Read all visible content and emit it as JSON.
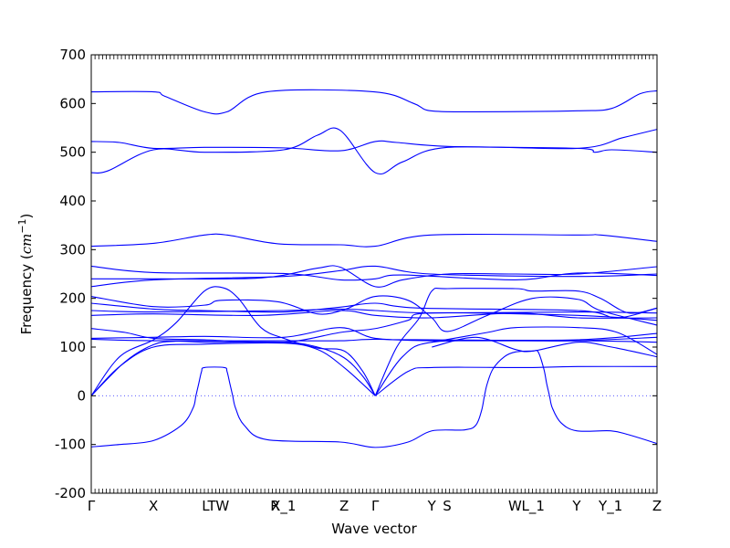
{
  "chart_data": {
    "type": "line",
    "title": "",
    "xlabel": "Wave vector",
    "ylabel": "Frequency ($cm^{-1}$)",
    "ylabel_parts": {
      "text": "Frequency (",
      "math": "cm",
      "sup": "−1",
      "close": ")"
    },
    "ylim": [
      -200,
      700
    ],
    "yticks": [
      -200,
      -100,
      0,
      100,
      200,
      300,
      400,
      500,
      600,
      700
    ],
    "xlim": [
      0,
      1
    ],
    "grid": false,
    "zero_line": {
      "y": 0,
      "style": "dotted"
    },
    "line_color": "#0000ff",
    "ref_line_color": "#4040ff",
    "high_symmetry_points": [
      {
        "label": "Γ",
        "x": 0.0
      },
      {
        "label": "X",
        "x": 0.11
      },
      {
        "label": "LT",
        "x": 0.208
      },
      {
        "label": "W",
        "x": 0.232
      },
      {
        "label": "R",
        "x": 0.325
      },
      {
        "label": "X_1",
        "x": 0.34
      },
      {
        "label": "Z",
        "x": 0.447
      },
      {
        "label": "Γ",
        "x": 0.502
      },
      {
        "label": "Y",
        "x": 0.602
      },
      {
        "label": "S",
        "x": 0.629
      },
      {
        "label": "W",
        "x": 0.749
      },
      {
        "label": "L_1",
        "x": 0.781
      },
      {
        "label": "Y",
        "x": 0.858
      },
      {
        "label": "Y_1",
        "x": 0.918
      },
      {
        "label": "Z",
        "x": 1.0
      }
    ],
    "series": [
      {
        "points": [
          [
            0,
            624
          ],
          [
            0.11,
            624
          ],
          [
            0.13,
            615
          ],
          [
            0.2,
            583
          ],
          [
            0.24,
            583
          ],
          [
            0.31,
            624
          ],
          [
            0.5,
            624
          ],
          [
            0.57,
            600
          ],
          [
            0.6,
            585
          ],
          [
            0.68,
            583
          ],
          [
            0.86,
            585
          ],
          [
            0.92,
            590
          ],
          [
            0.97,
            620
          ],
          [
            1.0,
            626
          ]
        ]
      },
      {
        "points": [
          [
            0,
            522
          ],
          [
            0.05,
            520
          ],
          [
            0.11,
            508
          ],
          [
            0.2,
            510
          ],
          [
            0.34,
            509
          ],
          [
            0.44,
            503
          ],
          [
            0.502,
            522
          ],
          [
            0.54,
            520
          ],
          [
            0.63,
            512
          ],
          [
            0.86,
            508
          ],
          [
            0.89,
            500
          ],
          [
            0.92,
            505
          ],
          [
            1.0,
            500
          ]
        ]
      },
      {
        "points": [
          [
            0,
            458
          ],
          [
            0.03,
            462
          ],
          [
            0.11,
            505
          ],
          [
            0.2,
            500
          ],
          [
            0.34,
            505
          ],
          [
            0.4,
            535
          ],
          [
            0.44,
            545
          ],
          [
            0.502,
            458
          ],
          [
            0.55,
            480
          ],
          [
            0.63,
            510
          ],
          [
            0.86,
            508
          ],
          [
            0.94,
            530
          ],
          [
            1.0,
            547
          ]
        ]
      },
      {
        "points": [
          [
            0,
            307
          ],
          [
            0.11,
            313
          ],
          [
            0.2,
            330
          ],
          [
            0.24,
            330
          ],
          [
            0.33,
            312
          ],
          [
            0.44,
            310
          ],
          [
            0.502,
            307
          ],
          [
            0.6,
            330
          ],
          [
            0.86,
            330
          ],
          [
            0.9,
            330
          ],
          [
            1.0,
            317
          ]
        ]
      },
      {
        "points": [
          [
            0,
            266
          ],
          [
            0.11,
            253
          ],
          [
            0.34,
            251
          ],
          [
            0.44,
            238
          ],
          [
            0.502,
            240
          ],
          [
            0.55,
            248
          ],
          [
            0.75,
            238
          ],
          [
            0.86,
            252
          ],
          [
            1.0,
            247
          ]
        ]
      },
      {
        "points": [
          [
            0,
            240
          ],
          [
            0.11,
            240
          ],
          [
            0.3,
            242
          ],
          [
            0.4,
            262
          ],
          [
            0.44,
            264
          ],
          [
            0.502,
            224
          ],
          [
            0.55,
            238
          ],
          [
            0.63,
            250
          ],
          [
            0.75,
            250
          ],
          [
            0.86,
            250
          ],
          [
            1.0,
            265
          ]
        ]
      },
      {
        "points": [
          [
            0,
            224
          ],
          [
            0.11,
            238
          ],
          [
            0.34,
            245
          ],
          [
            0.44,
            257
          ],
          [
            0.502,
            266
          ],
          [
            0.6,
            250
          ],
          [
            0.86,
            245
          ],
          [
            1.0,
            250
          ]
        ]
      },
      {
        "points": [
          [
            0,
            204
          ],
          [
            0.11,
            183
          ],
          [
            0.2,
            186
          ],
          [
            0.23,
            196
          ],
          [
            0.33,
            193
          ],
          [
            0.4,
            168
          ],
          [
            0.45,
            178
          ],
          [
            0.502,
            204
          ],
          [
            0.56,
            196
          ],
          [
            0.602,
            160
          ],
          [
            0.63,
            132
          ],
          [
            0.7,
            165
          ],
          [
            0.78,
            200
          ],
          [
            0.86,
            198
          ],
          [
            0.9,
            175
          ],
          [
            1.0,
            145
          ]
        ]
      },
      {
        "points": [
          [
            0,
            190
          ],
          [
            0.11,
            178
          ],
          [
            0.2,
            175
          ],
          [
            0.34,
            172
          ],
          [
            0.44,
            182
          ],
          [
            0.502,
            190
          ],
          [
            0.58,
            180
          ],
          [
            0.86,
            175
          ],
          [
            0.93,
            160
          ],
          [
            1.0,
            180
          ]
        ]
      },
      {
        "points": [
          [
            0,
            175
          ],
          [
            0.11,
            172
          ],
          [
            0.34,
            175
          ],
          [
            0.44,
            178
          ],
          [
            0.502,
            175
          ],
          [
            0.6,
            170
          ],
          [
            0.86,
            172
          ],
          [
            1.0,
            170
          ]
        ]
      },
      {
        "points": [
          [
            0,
            165
          ],
          [
            0.11,
            168
          ],
          [
            0.3,
            165
          ],
          [
            0.44,
            175
          ],
          [
            0.502,
            165
          ],
          [
            0.6,
            160
          ],
          [
            0.75,
            170
          ],
          [
            0.86,
            160
          ],
          [
            1.0,
            160
          ]
        ]
      },
      {
        "points": [
          [
            0,
            138
          ],
          [
            0.06,
            130
          ],
          [
            0.11,
            118
          ],
          [
            0.2,
            115
          ],
          [
            0.34,
            110
          ],
          [
            0.44,
            130
          ],
          [
            0.502,
            138
          ],
          [
            0.56,
            155
          ],
          [
            0.6,
            170
          ],
          [
            0.86,
            165
          ],
          [
            1.0,
            155
          ]
        ]
      },
      {
        "points": [
          [
            0,
            118
          ],
          [
            0.11,
            120
          ],
          [
            0.2,
            122
          ],
          [
            0.34,
            120
          ],
          [
            0.44,
            140
          ],
          [
            0.502,
            118
          ],
          [
            0.6,
            115
          ],
          [
            0.86,
            115
          ],
          [
            1.0,
            128
          ]
        ]
      },
      {
        "points": [
          [
            0,
            116
          ],
          [
            0.11,
            113
          ],
          [
            0.34,
            113
          ],
          [
            0.44,
            113
          ],
          [
            0.502,
            116
          ],
          [
            0.6,
            113
          ],
          [
            0.86,
            113
          ],
          [
            1.0,
            110
          ]
        ]
      },
      {
        "points": [
          [
            0,
            0
          ],
          [
            0.05,
            80
          ],
          [
            0.11,
            115
          ],
          [
            0.15,
            150
          ],
          [
            0.2,
            215
          ],
          [
            0.232,
            222
          ],
          [
            0.26,
            200
          ],
          [
            0.3,
            140
          ],
          [
            0.34,
            118
          ],
          [
            0.4,
            98
          ],
          [
            0.447,
            92
          ],
          [
            0.48,
            50
          ],
          [
            0.502,
            0
          ]
        ]
      },
      {
        "points": [
          [
            0,
            0
          ],
          [
            0.06,
            70
          ],
          [
            0.11,
            105
          ],
          [
            0.15,
            112
          ],
          [
            0.2,
            110
          ],
          [
            0.34,
            110
          ],
          [
            0.4,
            100
          ],
          [
            0.447,
            78
          ],
          [
            0.48,
            40
          ],
          [
            0.502,
            0
          ]
        ]
      },
      {
        "points": [
          [
            0,
            0
          ],
          [
            0.05,
            60
          ],
          [
            0.11,
            100
          ],
          [
            0.2,
            106
          ],
          [
            0.34,
            108
          ],
          [
            0.4,
            95
          ],
          [
            0.447,
            58
          ],
          [
            0.502,
            0
          ]
        ]
      },
      {
        "points": [
          [
            0.502,
            0
          ],
          [
            0.54,
            100
          ],
          [
            0.58,
            160
          ],
          [
            0.602,
            215
          ],
          [
            0.63,
            220
          ],
          [
            0.75,
            220
          ],
          [
            0.78,
            215
          ],
          [
            0.86,
            215
          ],
          [
            0.9,
            200
          ],
          [
            0.95,
            170
          ],
          [
            1.0,
            180
          ]
        ]
      },
      {
        "points": [
          [
            0.502,
            0
          ],
          [
            0.55,
            80
          ],
          [
            0.602,
            110
          ],
          [
            0.75,
            113
          ],
          [
            0.86,
            113
          ],
          [
            1.0,
            120
          ]
        ]
      },
      {
        "points": [
          [
            0.502,
            0
          ],
          [
            0.56,
            50
          ],
          [
            0.602,
            58
          ],
          [
            0.75,
            58
          ],
          [
            0.781,
            58
          ],
          [
            0.86,
            60
          ],
          [
            1.0,
            60
          ]
        ]
      },
      {
        "points": [
          [
            0.602,
            100
          ],
          [
            0.68,
            120
          ],
          [
            0.75,
            95
          ],
          [
            0.781,
            92
          ],
          [
            0.86,
            110
          ],
          [
            0.92,
            100
          ],
          [
            1.0,
            80
          ]
        ]
      },
      {
        "points": [
          [
            0.602,
            110
          ],
          [
            0.7,
            130
          ],
          [
            0.75,
            140
          ],
          [
            0.86,
            140
          ],
          [
            0.93,
            130
          ],
          [
            1.0,
            85
          ]
        ]
      },
      {
        "points": [
          [
            0,
            -105
          ],
          [
            0.05,
            -100
          ],
          [
            0.11,
            -92
          ],
          [
            0.16,
            -60
          ],
          [
            0.18,
            -25
          ],
          [
            0.185,
            0
          ],
          [
            0.19,
            25
          ],
          [
            0.195,
            50
          ],
          [
            0.2,
            58
          ],
          [
            0.235,
            58
          ],
          [
            0.24,
            50
          ],
          [
            0.245,
            25
          ],
          [
            0.25,
            0
          ],
          [
            0.255,
            -25
          ],
          [
            0.27,
            -60
          ],
          [
            0.31,
            -90
          ],
          [
            0.44,
            -95
          ],
          [
            0.502,
            -106
          ],
          [
            0.56,
            -95
          ],
          [
            0.602,
            -72
          ],
          [
            0.66,
            -70
          ],
          [
            0.68,
            -60
          ],
          [
            0.69,
            -30
          ],
          [
            0.695,
            0
          ],
          [
            0.7,
            25
          ],
          [
            0.71,
            55
          ],
          [
            0.73,
            80
          ],
          [
            0.75,
            90
          ],
          [
            0.781,
            92
          ],
          [
            0.79,
            90
          ],
          [
            0.8,
            55
          ],
          [
            0.805,
            25
          ],
          [
            0.81,
            0
          ],
          [
            0.815,
            -25
          ],
          [
            0.83,
            -55
          ],
          [
            0.858,
            -72
          ],
          [
            0.918,
            -72
          ],
          [
            0.95,
            -80
          ],
          [
            1.0,
            -98
          ]
        ]
      }
    ]
  }
}
